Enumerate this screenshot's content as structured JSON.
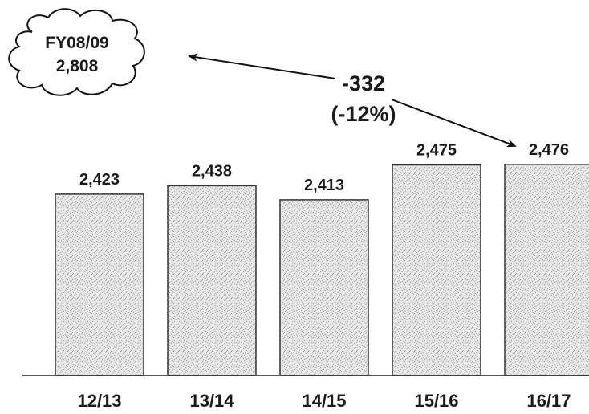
{
  "chart_data": {
    "type": "bar",
    "categories": [
      "12/13",
      "13/14",
      "14/15",
      "15/16",
      "16/17"
    ],
    "values": [
      2423,
      2438,
      2413,
      2475,
      2476
    ],
    "value_labels": [
      "2,423",
      "2,438",
      "2,413",
      "2,475",
      "2,476"
    ],
    "title": "",
    "xlabel": "",
    "ylabel": "",
    "ylim": [
      2100,
      2500
    ],
    "grid": false,
    "bar_fill": "#dcdcdc",
    "bar_edge": "#333333",
    "annotations": {
      "baseline_cloud": {
        "line1": "FY08/09",
        "line2": "2,808"
      },
      "change": {
        "line1": "-332",
        "line2": "(-12%)"
      }
    }
  }
}
